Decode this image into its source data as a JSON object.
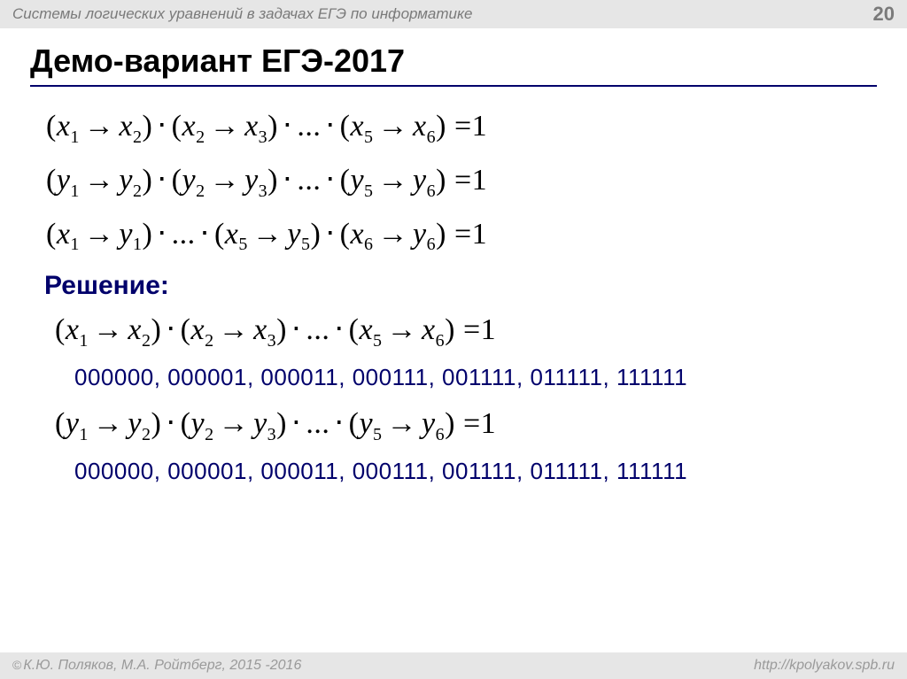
{
  "header": {
    "title": "Системы логических уравнений в задачах ЕГЭ по информатике",
    "page": "20"
  },
  "title": "Демо-вариант ЕГЭ-2017",
  "equations_top": {
    "eq1": {
      "var": "x",
      "pairs": [
        [
          1,
          2
        ],
        [
          2,
          3
        ],
        [
          5,
          6
        ]
      ],
      "ellipsis_after": 1,
      "rhs": "1"
    },
    "eq2": {
      "var": "y",
      "pairs": [
        [
          1,
          2
        ],
        [
          2,
          3
        ],
        [
          5,
          6
        ]
      ],
      "ellipsis_after": 1,
      "rhs": "1"
    },
    "eq3_mixed": {
      "pairs": [
        [
          "x",
          1,
          "y",
          1
        ],
        [
          "x",
          5,
          "y",
          5
        ],
        [
          "x",
          6,
          "y",
          6
        ]
      ],
      "ellipsis_after": 0,
      "rhs": "1"
    }
  },
  "solution_label": "Решение:",
  "solution": {
    "eq_x": {
      "var": "x",
      "pairs": [
        [
          1,
          2
        ],
        [
          2,
          3
        ],
        [
          5,
          6
        ]
      ],
      "ellipsis_after": 1,
      "rhs": "1"
    },
    "bits_x": "000000, 000001, 000011, 000111, 001111, 011111, 111111",
    "eq_y": {
      "var": "y",
      "pairs": [
        [
          1,
          2
        ],
        [
          2,
          3
        ],
        [
          5,
          6
        ]
      ],
      "ellipsis_after": 1,
      "rhs": "1"
    },
    "bits_y": "000000, 000001, 000011, 000111, 001111, 011111, 111111"
  },
  "footer": {
    "authors": "К.Ю. Поляков, М.А. Ройтберг, 2015 -2016",
    "url": "http://kpolyakov.spb.ru"
  },
  "colors": {
    "accent": "#00006b",
    "header_bg": "#e6e6e6",
    "header_text": "#7a7a7a",
    "footer_text": "#9a9a9a",
    "body_text": "#000000"
  },
  "glyphs": {
    "arrow": "→",
    "dot": "⋅",
    "ellipsis": "...",
    "eq": "=",
    "copyright": "©"
  }
}
